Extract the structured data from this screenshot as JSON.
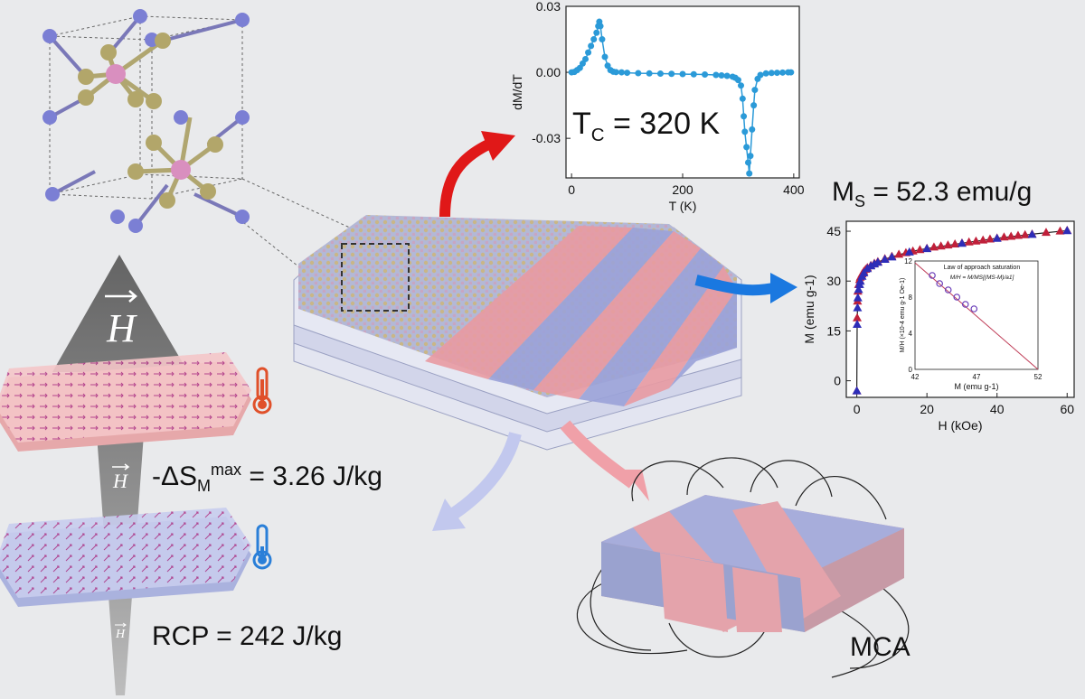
{
  "annotations": {
    "tc": {
      "main": "T",
      "sub": "C",
      "rest": " = 320 K"
    },
    "ms": {
      "main": "M",
      "sub": "S",
      "rest": " = 52.3 emu/g"
    },
    "entropy": {
      "prefix": "-ΔS",
      "sub": "M",
      "sup": "max",
      "rest": " = 3.26 J/kg"
    },
    "rcp": "RCP = 242 J/kg",
    "mca": "MCA",
    "field_symbol": "H"
  },
  "chart_data": [
    {
      "type": "line",
      "title": "",
      "xlabel": "T (K)",
      "ylabel": "dM/dT",
      "xlim": [
        -10,
        410
      ],
      "ylim": [
        -0.048,
        0.03
      ],
      "x_ticks": [
        0,
        200,
        400
      ],
      "y_ticks": [
        0.03,
        0.0,
        -0.03
      ],
      "y_tick_labels": [
        "0.03",
        "0.00",
        "-0.03"
      ],
      "color": "#2b9ad8",
      "series": [
        {
          "x": [
            0,
            5,
            10,
            15,
            20,
            25,
            30,
            35,
            40,
            45,
            48,
            50,
            52,
            55,
            60,
            65,
            70,
            75,
            80,
            90,
            100,
            120,
            140,
            160,
            180,
            200,
            220,
            240,
            260,
            270,
            280,
            290,
            295,
            300,
            305,
            308,
            310,
            312,
            315,
            318,
            320,
            322,
            325,
            328,
            330,
            335,
            340,
            350,
            360,
            370,
            380,
            390,
            395
          ],
          "y": [
            0,
            0.0002,
            0.001,
            0.002,
            0.004,
            0.006,
            0.009,
            0.012,
            0.015,
            0.018,
            0.021,
            0.023,
            0.021,
            0.015,
            0.007,
            0.003,
            0.001,
            0.0003,
            0.0001,
            0,
            -0.0002,
            -0.0004,
            -0.0005,
            -0.0006,
            -0.0007,
            -0.0008,
            -0.0009,
            -0.001,
            -0.0012,
            -0.0014,
            -0.0016,
            -0.002,
            -0.0025,
            -0.0035,
            -0.006,
            -0.012,
            -0.02,
            -0.027,
            -0.034,
            -0.041,
            -0.046,
            -0.038,
            -0.026,
            -0.015,
            -0.008,
            -0.003,
            -0.0012,
            -0.0005,
            -0.0003,
            -0.0002,
            -0.0001,
            0,
            0
          ]
        }
      ]
    },
    {
      "type": "scatter",
      "title": "",
      "xlabel": "H (kOe)",
      "ylabel": "M (emu g-1)",
      "xlim": [
        -3,
        62
      ],
      "ylim": [
        -5,
        48
      ],
      "x_ticks": [
        0,
        20,
        40,
        60
      ],
      "y_ticks": [
        0,
        15,
        30,
        45
      ],
      "series": [
        {
          "name": "",
          "marker": "triangle",
          "color": "#c0203a",
          "x": [
            0,
            0.1,
            0.2,
            0.3,
            0.5,
            0.8,
            1,
            1.5,
            2,
            2.5,
            3,
            4,
            5,
            6,
            8,
            10,
            12,
            14,
            16,
            18,
            20,
            22,
            24,
            26,
            28,
            30,
            32,
            34,
            36,
            38,
            40,
            42,
            44,
            46,
            48,
            50,
            54,
            58,
            60
          ],
          "y": [
            -3,
            19,
            24,
            27,
            29,
            30.5,
            31.2,
            32.2,
            33,
            33.6,
            34.1,
            34.8,
            35.4,
            35.9,
            36.8,
            37.5,
            38.1,
            38.6,
            39.1,
            39.5,
            39.9,
            40.3,
            40.6,
            40.9,
            41.2,
            41.5,
            41.8,
            42.1,
            42.4,
            42.7,
            43,
            43.3,
            43.5,
            43.8,
            44,
            44.2,
            44.7,
            45.1,
            45.3
          ]
        },
        {
          "name": "",
          "marker": "triangle",
          "color": "#2d2db8",
          "x": [
            0,
            0.1,
            0.2,
            0.3,
            0.5,
            0.8,
            1,
            1.5,
            2,
            3,
            4,
            5,
            6,
            8,
            10,
            15,
            20,
            30,
            40,
            50,
            60
          ],
          "y": [
            -3,
            17,
            22,
            25,
            27.5,
            29,
            30,
            31.5,
            32.5,
            33.8,
            34.6,
            35.2,
            35.7,
            36.6,
            37.3,
            38.8,
            39.8,
            41.4,
            42.9,
            44.1,
            45.2
          ]
        }
      ],
      "inset": {
        "title": "Law of approach saturation",
        "formula": "M/H = M/MS[(MS-M)/a1]",
        "xlabel": "M (emu g-1)",
        "ylabel": "M/H (×10-4 emu g-1 Oe-1)",
        "xlim": [
          42,
          52
        ],
        "ylim": [
          0,
          12
        ],
        "x_ticks": [
          42,
          47,
          52
        ],
        "y_ticks": [
          0,
          4,
          8,
          12
        ],
        "points": {
          "x": [
            43.4,
            44.0,
            44.7,
            45.4,
            46.1,
            46.8
          ],
          "y": [
            10.4,
            9.5,
            8.8,
            8.0,
            7.2,
            6.7
          ]
        },
        "fit_line": {
          "x": [
            42,
            52
          ],
          "y": [
            11.8,
            0
          ]
        },
        "point_color": "#6a3db8",
        "line_color": "#c0405a"
      }
    }
  ]
}
